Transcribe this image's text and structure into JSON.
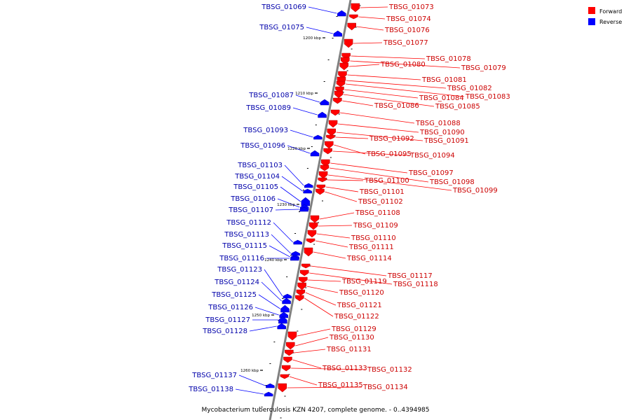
{
  "caption": "Mycobacterium tuberculosis KZN 4207, complete genome. - 0..4394985",
  "legend": [
    {
      "label": "Forward",
      "color": "#ff0000"
    },
    {
      "label": "Reverse",
      "color": "#0000ff"
    }
  ],
  "colors": {
    "forward": "#ff0000",
    "reverse": "#0000ff",
    "axis": "#808080"
  },
  "scale_labels": [
    "1200 kbp",
    "1210 kbp",
    "1220 kbp",
    "1230 kbp",
    "1240 kbp",
    "1250 kbp",
    "1260 kbp"
  ],
  "forward_genes": [
    "TBSG_01073",
    "TBSG_01074",
    "TBSG_01076",
    "TBSG_01077",
    "TBSG_01078",
    "TBSG_01079",
    "TBSG_01080",
    "TBSG_01081",
    "TBSG_01082",
    "TBSG_01083",
    "TBSG_01084",
    "TBSG_01085",
    "TBSG_01086",
    "TBSG_01088",
    "TBSG_01090",
    "TBSG_01091",
    "TBSG_01092",
    "TBSG_01095",
    "TBSG_01094",
    "TBSG_01097",
    "TBSG_01098",
    "TBSG_01099",
    "TBSG_01100",
    "TBSG_01101",
    "TBSG_01102",
    "TBSG_01108",
    "TBSG_01109",
    "TBSG_01110",
    "TBSG_01111",
    "TBSG_01114",
    "TBSG_01117",
    "TBSG_01118",
    "TBSG_01119",
    "TBSG_01120",
    "TBSG_01121",
    "TBSG_01122",
    "TBSG_01129",
    "TBSG_01130",
    "TBSG_01131",
    "TBSG_01133",
    "TBSG_01132",
    "TBSG_01135",
    "TBSG_01134"
  ],
  "reverse_genes": [
    "TBSG_01069",
    "TBSG_01075",
    "TBSG_01087",
    "TBSG_01089",
    "TBSG_01093",
    "TBSG_01096",
    "TBSG_01103",
    "TBSG_01104",
    "TBSG_01105",
    "TBSG_01106",
    "TBSG_01107",
    "TBSG_01112",
    "TBSG_01113",
    "TBSG_01115",
    "TBSG_01116",
    "TBSG_01123",
    "TBSG_01124",
    "TBSG_01125",
    "TBSG_01126",
    "TBSG_01127",
    "TBSG_01128",
    "TBSG_01137",
    "TBSG_01138"
  ]
}
